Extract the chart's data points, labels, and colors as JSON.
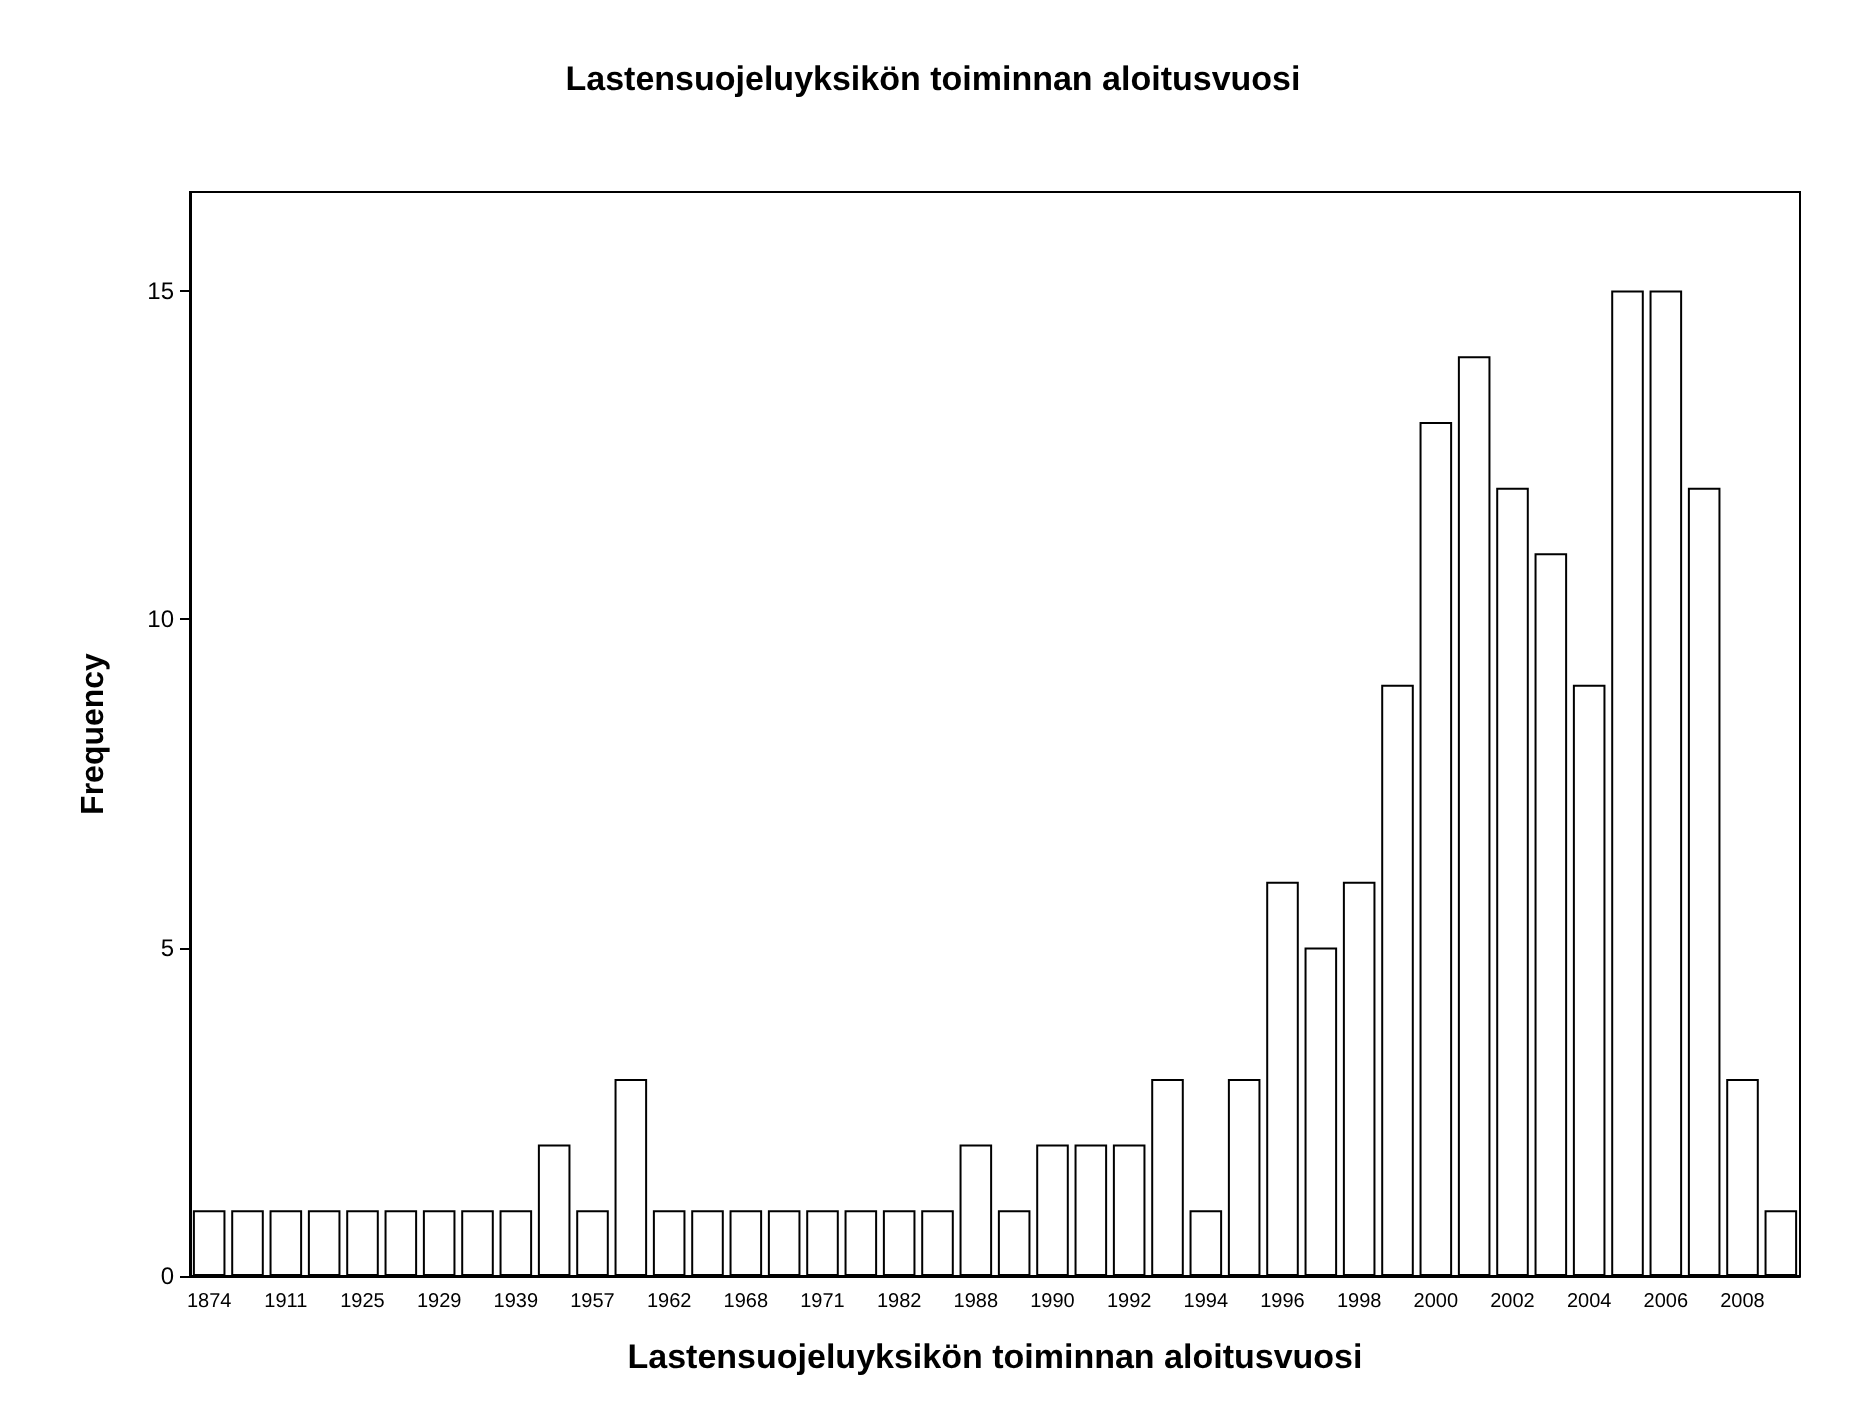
{
  "chart_data": {
    "type": "bar",
    "title": "Lastensuojeluyksikön toiminnan aloitusvuosi",
    "xlabel": "Lastensuojeluyksikön toiminnan aloitusvuosi",
    "ylabel": "Frequency",
    "categories": [
      "1874",
      null,
      "1911",
      null,
      "1925",
      null,
      "1929",
      null,
      "1939",
      null,
      "1957",
      null,
      "1962",
      null,
      "1968",
      null,
      "1971",
      null,
      "1982",
      null,
      "1988",
      null,
      "1990",
      null,
      "1992",
      null,
      "1994",
      null,
      "1996",
      null,
      "1998",
      null,
      "2000",
      null,
      "2002",
      null,
      "2004",
      null,
      "2006",
      null,
      "2008",
      null
    ],
    "values": [
      1,
      1,
      1,
      1,
      1,
      1,
      1,
      1,
      1,
      2,
      1,
      3,
      1,
      1,
      1,
      1,
      1,
      1,
      1,
      1,
      2,
      1,
      2,
      2,
      2,
      3,
      1,
      3,
      6,
      5,
      6,
      9,
      13,
      14,
      12,
      11,
      9,
      15,
      15,
      12,
      3,
      1
    ],
    "color": "#ffffff",
    "ylim": [
      0,
      16.5
    ],
    "yticks": [
      0,
      5,
      10,
      15
    ],
    "grid": false
  }
}
